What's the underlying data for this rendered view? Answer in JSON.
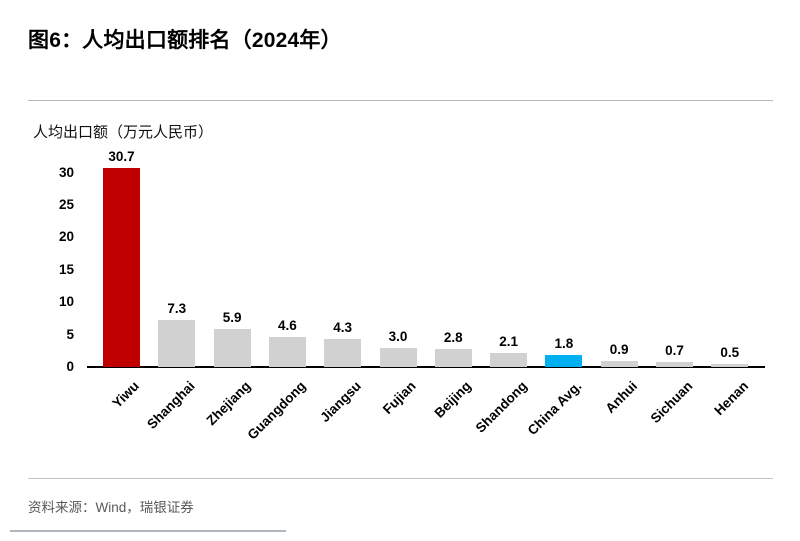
{
  "figure": {
    "title": "图6：人均出口额排名（2024年）",
    "source": "资料来源：Wind，瑞银证券"
  },
  "chart_data": {
    "type": "bar",
    "title": "人均出口额排名（2024年）",
    "axis_title": "人均出口额（万元人民币）",
    "categories": [
      "Yiwu",
      "Shanghai",
      "Zhejiang",
      "Guangdong",
      "Jiangsu",
      "Fujian",
      "Beijing",
      "Shandong",
      "China Avg.",
      "Anhui",
      "Sichuan",
      "Henan"
    ],
    "values": [
      30.7,
      7.3,
      5.9,
      4.6,
      4.3,
      3.0,
      2.8,
      2.1,
      1.8,
      0.9,
      0.7,
      0.5
    ],
    "value_labels": [
      "30.7",
      "7.3",
      "5.9",
      "4.6",
      "4.3",
      "3.0",
      "2.8",
      "2.1",
      "1.8",
      "0.9",
      "0.7",
      "0.5"
    ],
    "yticks": [
      "0",
      "5",
      "10",
      "15",
      "20",
      "25",
      "30"
    ],
    "ylim": [
      0,
      31
    ],
    "grid": false,
    "legend_position": "none",
    "colors": {
      "default_bar": "#D1D1D1",
      "highlight_bar": "#C00000",
      "average_bar": "#00B0F0",
      "axis_line": "#000000",
      "source_text": "#595959"
    },
    "highlight_index": 0,
    "average_index": 8
  }
}
